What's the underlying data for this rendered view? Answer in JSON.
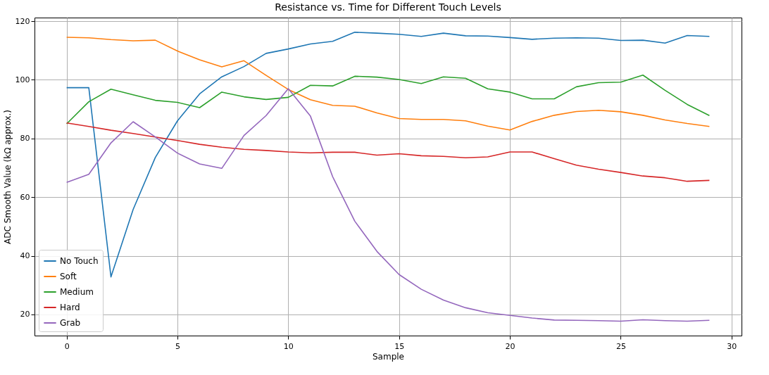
{
  "chart_data": {
    "type": "line",
    "title": "Resistance vs. Time for Different Touch Levels",
    "xlabel": "Sample",
    "ylabel": "ADC Smooth Value (kΩ approx.)",
    "x": [
      0,
      1,
      2,
      3,
      4,
      5,
      6,
      7,
      8,
      9,
      10,
      11,
      12,
      13,
      14,
      15,
      16,
      17,
      18,
      19,
      20,
      21,
      22,
      23,
      24,
      25,
      26,
      27,
      28,
      29
    ],
    "xlim": [
      -1.45,
      30.45
    ],
    "xticks": [
      0,
      5,
      10,
      15,
      20,
      25,
      30
    ],
    "ylim": [
      12.8,
      121.2
    ],
    "yticks": [
      20,
      40,
      60,
      80,
      100,
      120
    ],
    "grid": true,
    "legend": "bottom left",
    "series": [
      {
        "name": "No Touch",
        "color": "#1f77b4",
        "values": [
          97.3,
          97.3,
          32.8,
          55.8,
          73.5,
          86,
          95.2,
          101,
          104.5,
          109,
          110.5,
          112.2,
          113.1,
          116.2,
          115.9,
          115.5,
          114.8,
          115.9,
          115,
          114.9,
          114.4,
          113.8,
          114.2,
          114.3,
          114.2,
          113.4,
          113.5,
          112.5,
          115.1,
          114.8
        ]
      },
      {
        "name": "Soft",
        "color": "#ff7f0e",
        "values": [
          114.5,
          114.3,
          113.7,
          113.3,
          113.5,
          109.8,
          106.8,
          104.4,
          106.5,
          101.5,
          96.7,
          93.2,
          91.3,
          91,
          88.7,
          86.8,
          86.5,
          86.5,
          86,
          84.2,
          82.9,
          85.8,
          87.9,
          89.2,
          89.6,
          89.1,
          87.9,
          86.3,
          85.1,
          84.1
        ]
      },
      {
        "name": "Medium",
        "color": "#2ca02c",
        "values": [
          85,
          92.5,
          96.8,
          94.9,
          93,
          92.3,
          90.5,
          95.8,
          94.2,
          93.3,
          94,
          98.1,
          97.9,
          101.2,
          100.9,
          100.1,
          98.7,
          101,
          100.5,
          96.9,
          95.8,
          93.5,
          93.5,
          97.6,
          99,
          99.2,
          101.6,
          96.4,
          91.6,
          87.8
        ]
      },
      {
        "name": "Hard",
        "color": "#d62728",
        "values": [
          85.3,
          84.1,
          82.8,
          81.7,
          80.5,
          79.3,
          78,
          77,
          76.3,
          75.9,
          75.4,
          75.1,
          75.3,
          75.3,
          74.3,
          74.8,
          74.1,
          73.9,
          73.4,
          73.7,
          75.4,
          75.4,
          73.1,
          70.9,
          69.5,
          68.4,
          67.2,
          66.6,
          65.4,
          65.7
        ]
      },
      {
        "name": "Grab",
        "color": "#9467bd",
        "values": [
          65,
          67.8,
          78.5,
          85.7,
          80.5,
          75,
          71.3,
          69.8,
          81,
          87.8,
          97,
          87.6,
          67,
          51.8,
          41.5,
          33.6,
          28.6,
          24.9,
          22.3,
          20.6,
          19.7,
          18.8,
          18.1,
          18,
          17.9,
          17.7,
          18.2,
          17.9,
          17.7,
          18
        ]
      }
    ]
  }
}
